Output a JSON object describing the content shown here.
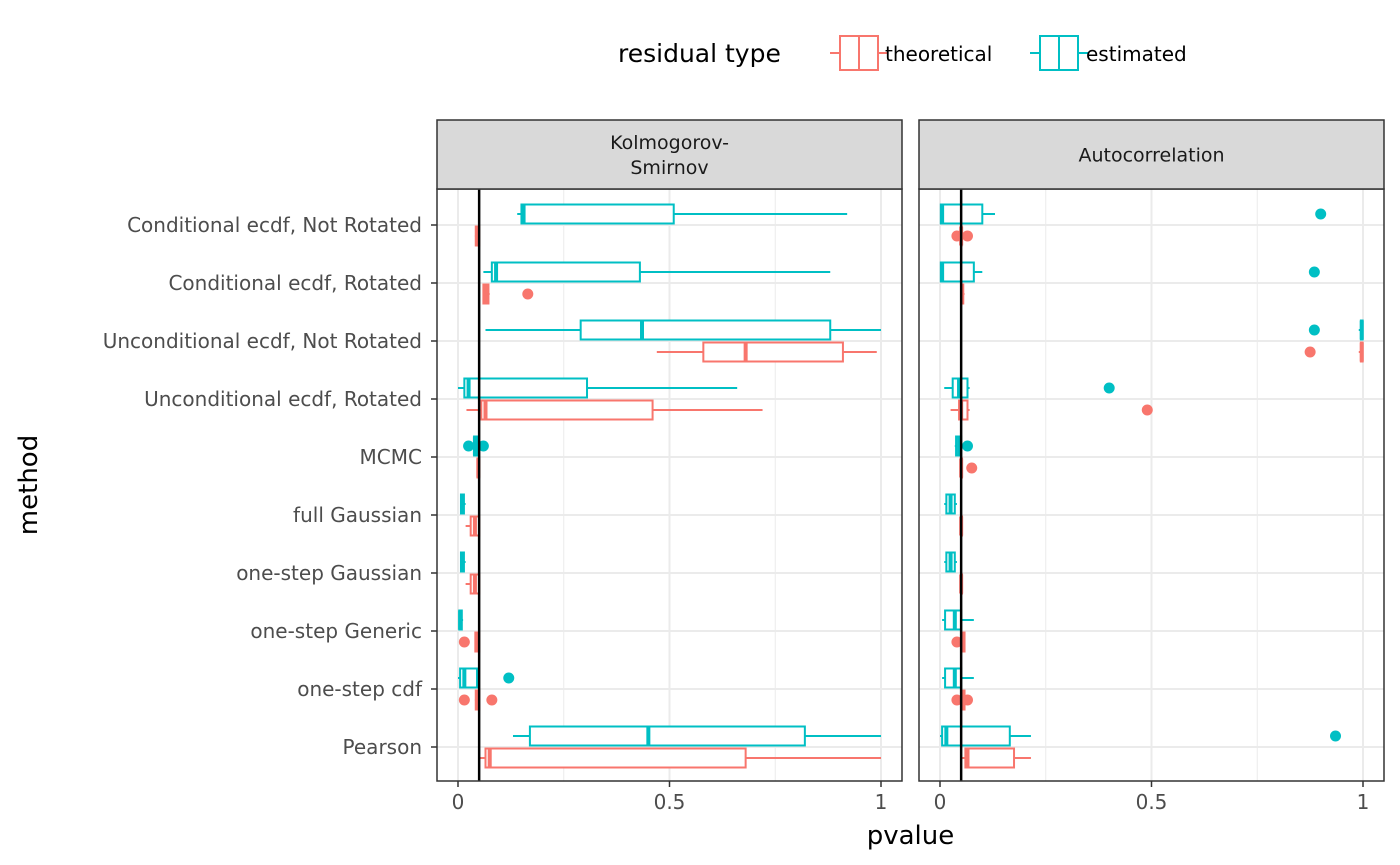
{
  "chart_data": {
    "type": "boxplot",
    "orientation": "horizontal",
    "xlabel": "pvalue",
    "ylabel": "method",
    "xlim": [
      0,
      1
    ],
    "x_ticks": [
      "0",
      "0.5",
      "1"
    ],
    "x_tick_values": [
      0,
      0.5,
      1
    ],
    "reference_line_x": 0.05,
    "grid": true,
    "legend": {
      "title": "residual type",
      "placement": "top",
      "entries": [
        {
          "key": "theoretical",
          "label": "theoretical",
          "color": "#F8766D"
        },
        {
          "key": "estimated",
          "label": "estimated",
          "color": "#00BFC4"
        }
      ]
    },
    "categories": [
      "Conditional ecdf, Not Rotated",
      "Conditional ecdf, Rotated",
      "Unconditional ecdf, Not Rotated",
      "Unconditional ecdf, Rotated",
      "MCMC",
      "full Gaussian",
      "one-step Gaussian",
      "one-step Generic",
      "one-step cdf",
      "Pearson"
    ],
    "facets": [
      {
        "label_lines": [
          "Kolmogorov-",
          "Smirnov"
        ],
        "boxes": [
          {
            "category": 0,
            "series": "estimated",
            "min": 0.14,
            "q1": 0.15,
            "median": 0.155,
            "q3": 0.51,
            "max": 0.92,
            "outliers": []
          },
          {
            "category": 0,
            "series": "theoretical",
            "min": 0.04,
            "q1": 0.042,
            "median": 0.045,
            "q3": 0.05,
            "max": 0.052,
            "outliers": []
          },
          {
            "category": 1,
            "series": "estimated",
            "min": 0.06,
            "q1": 0.08,
            "median": 0.09,
            "q3": 0.43,
            "max": 0.88,
            "outliers": []
          },
          {
            "category": 1,
            "series": "theoretical",
            "min": 0.058,
            "q1": 0.06,
            "median": 0.065,
            "q3": 0.072,
            "max": 0.075,
            "outliers": [
              0.165
            ]
          },
          {
            "category": 2,
            "series": "estimated",
            "min": 0.065,
            "q1": 0.29,
            "median": 0.435,
            "q3": 0.88,
            "max": 1.0,
            "outliers": []
          },
          {
            "category": 2,
            "series": "theoretical",
            "min": 0.47,
            "q1": 0.58,
            "median": 0.68,
            "q3": 0.91,
            "max": 0.99,
            "outliers": []
          },
          {
            "category": 3,
            "series": "estimated",
            "min": 0.0,
            "q1": 0.015,
            "median": 0.025,
            "q3": 0.305,
            "max": 0.66,
            "outliers": []
          },
          {
            "category": 3,
            "series": "theoretical",
            "min": 0.02,
            "q1": 0.055,
            "median": 0.065,
            "q3": 0.46,
            "max": 0.72,
            "outliers": []
          },
          {
            "category": 4,
            "series": "estimated",
            "min": 0.035,
            "q1": 0.038,
            "median": 0.04,
            "q3": 0.045,
            "max": 0.048,
            "outliers": [
              0.025,
              0.06
            ]
          },
          {
            "category": 4,
            "series": "theoretical",
            "min": 0.045,
            "q1": 0.046,
            "median": 0.048,
            "q3": 0.05,
            "max": 0.052,
            "outliers": []
          },
          {
            "category": 5,
            "series": "estimated",
            "min": 0.005,
            "q1": 0.007,
            "median": 0.01,
            "q3": 0.014,
            "max": 0.018,
            "outliers": []
          },
          {
            "category": 5,
            "series": "theoretical",
            "min": 0.018,
            "q1": 0.03,
            "median": 0.04,
            "q3": 0.05,
            "max": 0.052,
            "outliers": []
          },
          {
            "category": 6,
            "series": "estimated",
            "min": 0.005,
            "q1": 0.007,
            "median": 0.01,
            "q3": 0.014,
            "max": 0.018,
            "outliers": []
          },
          {
            "category": 6,
            "series": "theoretical",
            "min": 0.018,
            "q1": 0.03,
            "median": 0.04,
            "q3": 0.05,
            "max": 0.052,
            "outliers": []
          },
          {
            "category": 7,
            "series": "estimated",
            "min": 0.002,
            "q1": 0.003,
            "median": 0.005,
            "q3": 0.009,
            "max": 0.012,
            "outliers": []
          },
          {
            "category": 7,
            "series": "theoretical",
            "min": 0.04,
            "q1": 0.041,
            "median": 0.045,
            "q3": 0.05,
            "max": 0.052,
            "outliers": [
              0.015
            ]
          },
          {
            "category": 8,
            "series": "estimated",
            "min": 0.0,
            "q1": 0.005,
            "median": 0.015,
            "q3": 0.045,
            "max": 0.05,
            "outliers": [
              0.12
            ]
          },
          {
            "category": 8,
            "series": "theoretical",
            "min": 0.04,
            "q1": 0.042,
            "median": 0.045,
            "q3": 0.05,
            "max": 0.052,
            "outliers": [
              0.015,
              0.08
            ]
          },
          {
            "category": 9,
            "series": "estimated",
            "min": 0.13,
            "q1": 0.17,
            "median": 0.45,
            "q3": 0.82,
            "max": 1.0,
            "outliers": []
          },
          {
            "category": 9,
            "series": "theoretical",
            "min": 0.05,
            "q1": 0.065,
            "median": 0.075,
            "q3": 0.68,
            "max": 1.0,
            "outliers": []
          }
        ]
      },
      {
        "label_lines": [
          "Autocorrelation"
        ],
        "boxes": [
          {
            "category": 0,
            "series": "estimated",
            "min": 0.0,
            "q1": 0.002,
            "median": 0.005,
            "q3": 0.1,
            "max": 0.13,
            "outliers": [
              0.9
            ]
          },
          {
            "category": 0,
            "series": "theoretical",
            "min": 0.05,
            "q1": 0.05,
            "median": 0.05,
            "q3": 0.05,
            "max": 0.05,
            "outliers": [
              0.04,
              0.065
            ]
          },
          {
            "category": 1,
            "series": "estimated",
            "min": 0.0,
            "q1": 0.002,
            "median": 0.005,
            "q3": 0.08,
            "max": 0.1,
            "outliers": [
              0.885
            ]
          },
          {
            "category": 1,
            "series": "theoretical",
            "min": 0.048,
            "q1": 0.05,
            "median": 0.052,
            "q3": 0.055,
            "max": 0.058,
            "outliers": []
          },
          {
            "category": 2,
            "series": "estimated",
            "min": 0.99,
            "q1": 0.995,
            "median": 0.997,
            "q3": 0.999,
            "max": 1.0,
            "outliers": [
              0.885
            ]
          },
          {
            "category": 2,
            "series": "theoretical",
            "min": 0.99,
            "q1": 0.995,
            "median": 0.997,
            "q3": 0.999,
            "max": 1.0,
            "outliers": [
              0.875
            ]
          },
          {
            "category": 3,
            "series": "estimated",
            "min": 0.01,
            "q1": 0.03,
            "median": 0.045,
            "q3": 0.065,
            "max": 0.07,
            "outliers": [
              0.4
            ]
          },
          {
            "category": 3,
            "series": "theoretical",
            "min": 0.025,
            "q1": 0.045,
            "median": 0.05,
            "q3": 0.065,
            "max": 0.07,
            "outliers": [
              0.49
            ]
          },
          {
            "category": 4,
            "series": "estimated",
            "min": 0.035,
            "q1": 0.038,
            "median": 0.045,
            "q3": 0.05,
            "max": 0.055,
            "outliers": [
              0.065
            ]
          },
          {
            "category": 4,
            "series": "theoretical",
            "min": 0.048,
            "q1": 0.05,
            "median": 0.05,
            "q3": 0.052,
            "max": 0.053,
            "outliers": [
              0.075
            ]
          },
          {
            "category": 5,
            "series": "estimated",
            "min": 0.01,
            "q1": 0.015,
            "median": 0.025,
            "q3": 0.035,
            "max": 0.04,
            "outliers": []
          },
          {
            "category": 5,
            "series": "theoretical",
            "min": 0.048,
            "q1": 0.05,
            "median": 0.05,
            "q3": 0.052,
            "max": 0.053,
            "outliers": []
          },
          {
            "category": 6,
            "series": "estimated",
            "min": 0.01,
            "q1": 0.015,
            "median": 0.025,
            "q3": 0.035,
            "max": 0.04,
            "outliers": []
          },
          {
            "category": 6,
            "series": "theoretical",
            "min": 0.048,
            "q1": 0.05,
            "median": 0.05,
            "q3": 0.052,
            "max": 0.053,
            "outliers": []
          },
          {
            "category": 7,
            "series": "estimated",
            "min": 0.005,
            "q1": 0.012,
            "median": 0.035,
            "q3": 0.05,
            "max": 0.08,
            "outliers": []
          },
          {
            "category": 7,
            "series": "theoretical",
            "min": 0.05,
            "q1": 0.052,
            "median": 0.055,
            "q3": 0.058,
            "max": 0.06,
            "outliers": [
              0.04
            ]
          },
          {
            "category": 8,
            "series": "estimated",
            "min": 0.005,
            "q1": 0.012,
            "median": 0.035,
            "q3": 0.05,
            "max": 0.08,
            "outliers": []
          },
          {
            "category": 8,
            "series": "theoretical",
            "min": 0.05,
            "q1": 0.052,
            "median": 0.055,
            "q3": 0.058,
            "max": 0.06,
            "outliers": [
              0.04,
              0.065
            ]
          },
          {
            "category": 9,
            "series": "estimated",
            "min": 0.0,
            "q1": 0.005,
            "median": 0.015,
            "q3": 0.165,
            "max": 0.215,
            "outliers": [
              0.935
            ]
          },
          {
            "category": 9,
            "series": "theoretical",
            "min": 0.05,
            "q1": 0.06,
            "median": 0.065,
            "q3": 0.175,
            "max": 0.215,
            "outliers": []
          }
        ]
      }
    ]
  }
}
